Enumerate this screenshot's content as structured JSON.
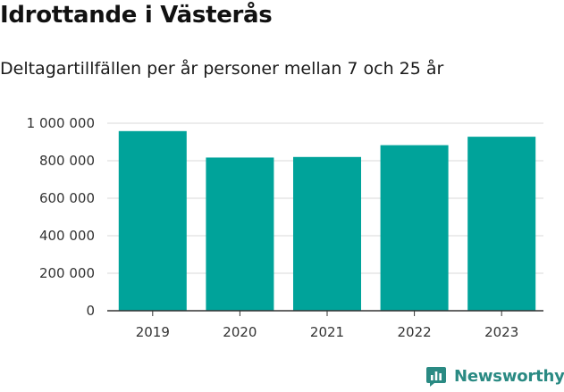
{
  "title": "Idrottande i Västerås",
  "subtitle": "Deltagartillfällen per år personer mellan 7 och 25 år",
  "brand": {
    "name": "Newsworthy",
    "icon": "newsworthy-logo-icon",
    "color": "#2a8a83"
  },
  "colors": {
    "bar": "#00a39a",
    "grid": "#d9d9d9",
    "axis": "#333333"
  },
  "chart_data": {
    "type": "bar",
    "title": "Idrottande i Västerås",
    "subtitle": "Deltagartillfällen per år personer mellan 7 och 25 år",
    "xlabel": "",
    "ylabel": "",
    "categories": [
      "2019",
      "2020",
      "2021",
      "2022",
      "2023"
    ],
    "values": [
      958000,
      817000,
      820000,
      883000,
      928000
    ],
    "ylim": [
      0,
      1000000
    ],
    "yticks": [
      0,
      200000,
      400000,
      600000,
      800000,
      1000000
    ],
    "ytick_labels": [
      "0",
      "200 000",
      "400 000",
      "600 000",
      "800 000",
      "1 000 000"
    ],
    "grid": true,
    "legend": "none"
  }
}
